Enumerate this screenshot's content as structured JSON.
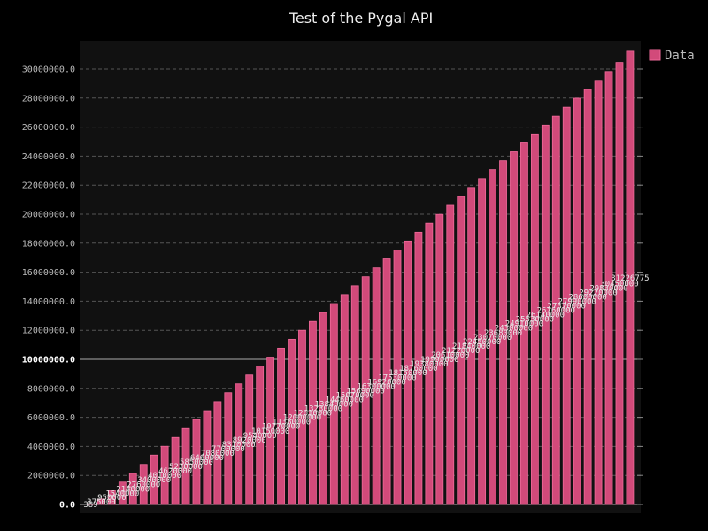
{
  "chart_data": {
    "type": "bar",
    "title": "Test of the Pygal API",
    "xlabel": "",
    "ylabel": "",
    "ylim": [
      0,
      32000000
    ],
    "y_ticks": [
      0,
      2000000,
      4000000,
      6000000,
      8000000,
      10000000,
      12000000,
      14000000,
      16000000,
      18000000,
      20000000,
      22000000,
      24000000,
      26000000,
      28000000,
      30000000
    ],
    "y_tick_labels": [
      "0.0",
      "2000000.0",
      "4000000.0",
      "6000000.0",
      "8000000.0",
      "10000000.0",
      "12000000.0",
      "14000000.0",
      "16000000.0",
      "18000000.0",
      "20000000.0",
      "22000000.0",
      "24000000.0",
      "26000000.0",
      "28000000.0",
      "30000000.0"
    ],
    "major_ticks": [
      0,
      10000000
    ],
    "grid": true,
    "legend_position": "top-right",
    "bar_color": "#d24a7a",
    "background_color": "#000000",
    "plot_background_color": "#111111",
    "series": [
      {
        "name": "Data",
        "values": [
          389,
          375000,
          950000,
          1540000,
          2140000,
          2760000,
          3400000,
          4010000,
          4620000,
          5230000,
          5850000,
          6460000,
          7080000,
          7700000,
          8310000,
          8920000,
          9540000,
          10150000,
          10770000,
          11380000,
          12000000,
          12610000,
          13230000,
          13840000,
          14460000,
          15070000,
          15690000,
          16300000,
          16920000,
          17530000,
          18150000,
          18760000,
          19380000,
          19990000,
          20610000,
          21220000,
          21840000,
          22450000,
          23070000,
          23680000,
          24300000,
          24910000,
          25530000,
          26140000,
          26760000,
          27370000,
          27990000,
          28600000,
          29220000,
          29830000,
          30450000,
          31226775
        ],
        "labels": [
          "389",
          "375000",
          "950000",
          "1540000",
          "2140000",
          "2760000",
          "3400000",
          "4010000",
          "4620000",
          "5230000",
          "5850000",
          "6460000",
          "7080000",
          "7700000",
          "8310000",
          "8920000",
          "9540000",
          "10150000",
          "10770000",
          "11380000",
          "12000000",
          "12610000",
          "13230000",
          "13840000",
          "14460000",
          "15070000",
          "15690000",
          "16300000",
          "16920000",
          "17530000",
          "18150000",
          "18760000",
          "19380000",
          "19990000",
          "20610000",
          "21220000",
          "21840000",
          "22450000",
          "23070000",
          "23680000",
          "24300000",
          "24910000",
          "25530000",
          "26140000",
          "26760000",
          "27370000",
          "27990000",
          "28600000",
          "29220000",
          "29830000",
          "30450000",
          "31226775"
        ]
      }
    ]
  }
}
